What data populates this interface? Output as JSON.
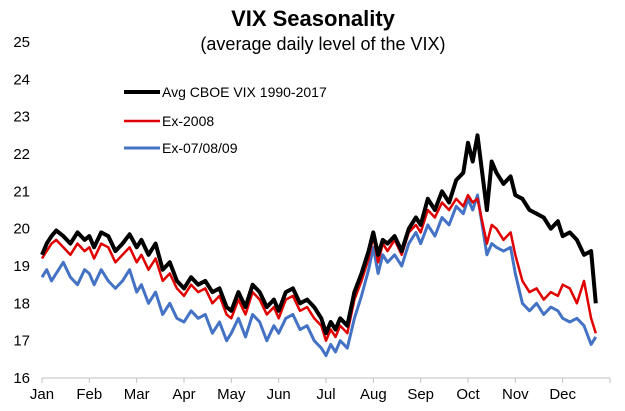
{
  "chart_data": {
    "type": "line",
    "title": "VIX Seasonality",
    "subtitle": "(average daily level of the VIX)",
    "xlabel": "",
    "ylabel": "",
    "ylim": [
      16,
      25
    ],
    "yticks": [
      16,
      17,
      18,
      19,
      20,
      21,
      22,
      23,
      24,
      25
    ],
    "x_ticks": [
      "Jan",
      "Feb",
      "Mar",
      "Apr",
      "May",
      "Jun",
      "Jul",
      "Aug",
      "Sep",
      "Oct",
      "Nov",
      "Dec"
    ],
    "grid": false,
    "legend_position": "top-left",
    "x_unit": "month (start of month = integer index)",
    "series": [
      {
        "name": "Avg CBOE VIX 1990-2017",
        "color": "#000000",
        "x": [
          0,
          0.1,
          0.2,
          0.3,
          0.45,
          0.6,
          0.75,
          0.9,
          1.0,
          1.1,
          1.25,
          1.4,
          1.55,
          1.7,
          1.85,
          2.0,
          2.1,
          2.25,
          2.4,
          2.55,
          2.7,
          2.85,
          3.0,
          3.15,
          3.3,
          3.45,
          3.6,
          3.75,
          3.9,
          4.0,
          4.15,
          4.3,
          4.45,
          4.6,
          4.75,
          4.9,
          5.0,
          5.15,
          5.3,
          5.45,
          5.6,
          5.75,
          5.9,
          6.0,
          6.1,
          6.2,
          6.3,
          6.45,
          6.6,
          6.75,
          6.9,
          7.0,
          7.1,
          7.2,
          7.3,
          7.45,
          7.6,
          7.75,
          7.9,
          8.0,
          8.15,
          8.3,
          8.45,
          8.6,
          8.75,
          8.9,
          9.0,
          9.1,
          9.2,
          9.3,
          9.4,
          9.5,
          9.6,
          9.75,
          9.9,
          10.0,
          10.15,
          10.3,
          10.45,
          10.6,
          10.75,
          10.9,
          11.0,
          11.15,
          11.3,
          11.45,
          11.6,
          11.7
        ],
        "values": [
          19.3,
          19.6,
          19.8,
          19.95,
          19.8,
          19.6,
          19.9,
          19.7,
          19.8,
          19.5,
          19.9,
          19.8,
          19.4,
          19.6,
          19.85,
          19.5,
          19.7,
          19.3,
          19.6,
          18.9,
          19.1,
          18.6,
          18.4,
          18.7,
          18.5,
          18.6,
          18.3,
          18.4,
          17.9,
          17.8,
          18.3,
          17.9,
          18.5,
          18.3,
          17.9,
          18.1,
          17.8,
          18.3,
          18.4,
          18.0,
          18.1,
          17.9,
          17.6,
          17.2,
          17.5,
          17.3,
          17.6,
          17.4,
          18.3,
          18.8,
          19.4,
          19.9,
          19.3,
          19.7,
          19.6,
          19.8,
          19.4,
          20.0,
          20.3,
          20.1,
          20.8,
          20.5,
          21.0,
          20.7,
          21.3,
          21.5,
          22.3,
          21.8,
          22.5,
          21.5,
          20.5,
          21.8,
          21.5,
          21.2,
          21.4,
          20.9,
          20.8,
          20.5,
          20.4,
          20.3,
          20.0,
          20.2,
          19.8,
          19.9,
          19.7,
          19.3,
          19.4,
          18.0
        ]
      },
      {
        "name": "Ex-2008",
        "color": "#e00000",
        "x": [
          0,
          0.1,
          0.2,
          0.3,
          0.45,
          0.6,
          0.75,
          0.9,
          1.0,
          1.1,
          1.25,
          1.4,
          1.55,
          1.7,
          1.85,
          2.0,
          2.1,
          2.25,
          2.4,
          2.55,
          2.7,
          2.85,
          3.0,
          3.15,
          3.3,
          3.45,
          3.6,
          3.75,
          3.9,
          4.0,
          4.15,
          4.3,
          4.45,
          4.6,
          4.75,
          4.9,
          5.0,
          5.15,
          5.3,
          5.45,
          5.6,
          5.75,
          5.9,
          6.0,
          6.1,
          6.2,
          6.3,
          6.45,
          6.6,
          6.75,
          6.9,
          7.0,
          7.1,
          7.2,
          7.3,
          7.45,
          7.6,
          7.75,
          7.9,
          8.0,
          8.15,
          8.3,
          8.45,
          8.6,
          8.75,
          8.9,
          9.0,
          9.1,
          9.2,
          9.3,
          9.4,
          9.5,
          9.6,
          9.75,
          9.9,
          10.0,
          10.15,
          10.3,
          10.45,
          10.6,
          10.75,
          10.9,
          11.0,
          11.15,
          11.3,
          11.45,
          11.6,
          11.7
        ],
        "values": [
          19.2,
          19.4,
          19.6,
          19.7,
          19.5,
          19.3,
          19.6,
          19.4,
          19.5,
          19.2,
          19.6,
          19.5,
          19.1,
          19.3,
          19.5,
          19.1,
          19.3,
          18.9,
          19.2,
          18.6,
          18.8,
          18.4,
          18.2,
          18.5,
          18.3,
          18.4,
          18.0,
          18.2,
          17.7,
          17.6,
          18.1,
          17.7,
          18.3,
          18.1,
          17.7,
          17.9,
          17.6,
          18.1,
          18.2,
          17.8,
          17.9,
          17.6,
          17.4,
          17.0,
          17.3,
          17.1,
          17.4,
          17.2,
          18.1,
          18.6,
          19.2,
          19.8,
          19.1,
          19.6,
          19.4,
          19.7,
          19.3,
          19.9,
          20.1,
          19.9,
          20.5,
          20.3,
          20.7,
          20.5,
          20.8,
          20.6,
          20.9,
          20.7,
          20.8,
          20.2,
          19.6,
          20.1,
          20.0,
          19.7,
          19.9,
          19.3,
          18.6,
          18.3,
          18.4,
          18.1,
          18.3,
          18.2,
          18.5,
          18.4,
          18.0,
          18.6,
          17.6,
          17.2
        ]
      },
      {
        "name": "Ex-07/08/09",
        "color": "#4472c4",
        "x": [
          0,
          0.1,
          0.2,
          0.3,
          0.45,
          0.6,
          0.75,
          0.9,
          1.0,
          1.1,
          1.25,
          1.4,
          1.55,
          1.7,
          1.85,
          2.0,
          2.1,
          2.25,
          2.4,
          2.55,
          2.7,
          2.85,
          3.0,
          3.15,
          3.3,
          3.45,
          3.6,
          3.75,
          3.9,
          4.0,
          4.15,
          4.3,
          4.45,
          4.6,
          4.75,
          4.9,
          5.0,
          5.15,
          5.3,
          5.45,
          5.6,
          5.75,
          5.9,
          6.0,
          6.1,
          6.2,
          6.3,
          6.45,
          6.6,
          6.75,
          6.9,
          7.0,
          7.1,
          7.2,
          7.3,
          7.45,
          7.6,
          7.75,
          7.9,
          8.0,
          8.15,
          8.3,
          8.45,
          8.6,
          8.75,
          8.9,
          9.0,
          9.1,
          9.2,
          9.3,
          9.4,
          9.5,
          9.6,
          9.75,
          9.9,
          10.0,
          10.15,
          10.3,
          10.45,
          10.6,
          10.75,
          10.9,
          11.0,
          11.15,
          11.3,
          11.45,
          11.6,
          11.7
        ],
        "values": [
          18.7,
          18.9,
          18.6,
          18.8,
          19.1,
          18.7,
          18.5,
          18.9,
          18.8,
          18.5,
          18.9,
          18.6,
          18.4,
          18.6,
          18.9,
          18.3,
          18.5,
          18.0,
          18.3,
          17.7,
          18.0,
          17.6,
          17.5,
          17.8,
          17.6,
          17.7,
          17.2,
          17.5,
          17.0,
          17.2,
          17.6,
          17.1,
          17.7,
          17.5,
          17.0,
          17.4,
          17.2,
          17.6,
          17.7,
          17.3,
          17.4,
          17.0,
          16.8,
          16.6,
          16.9,
          16.7,
          17.0,
          16.8,
          17.6,
          18.2,
          18.9,
          19.5,
          18.8,
          19.3,
          19.1,
          19.3,
          19.0,
          19.6,
          19.9,
          19.6,
          20.1,
          19.8,
          20.3,
          20.1,
          20.6,
          20.4,
          20.8,
          20.5,
          20.9,
          20.1,
          19.3,
          19.6,
          19.5,
          19.4,
          19.5,
          18.8,
          18.0,
          17.8,
          18.0,
          17.7,
          17.9,
          17.8,
          17.6,
          17.5,
          17.6,
          17.4,
          16.9,
          17.1
        ]
      }
    ]
  }
}
